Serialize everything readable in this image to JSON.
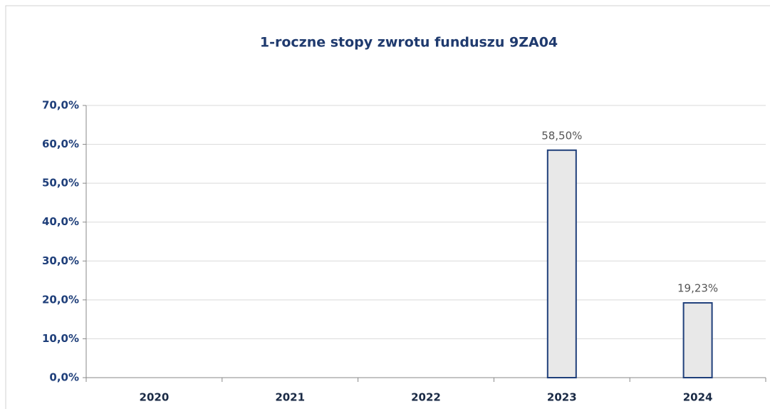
{
  "chart_data": {
    "type": "bar",
    "title": "1-roczne stopy zwrotu funduszu 9ZA04",
    "categories": [
      "2020",
      "2021",
      "2022",
      "2023",
      "2024"
    ],
    "values": [
      null,
      null,
      null,
      58.5,
      19.23
    ],
    "value_labels": [
      null,
      null,
      null,
      "58,50%",
      "19,23%"
    ],
    "color": "#e8e8e8",
    "edge_color": "#1f3f7a",
    "ylim": [
      0,
      70
    ],
    "yticks": [
      {
        "value": 0,
        "label": "0,0%"
      },
      {
        "value": 10,
        "label": "10,0%"
      },
      {
        "value": 20,
        "label": "20,0%"
      },
      {
        "value": 30,
        "label": "30,0%"
      },
      {
        "value": 40,
        "label": "40,0%"
      },
      {
        "value": 50,
        "label": "50,0%"
      },
      {
        "value": 60,
        "label": "60,0%"
      },
      {
        "value": 70,
        "label": "70,0%"
      }
    ],
    "grid": true
  }
}
